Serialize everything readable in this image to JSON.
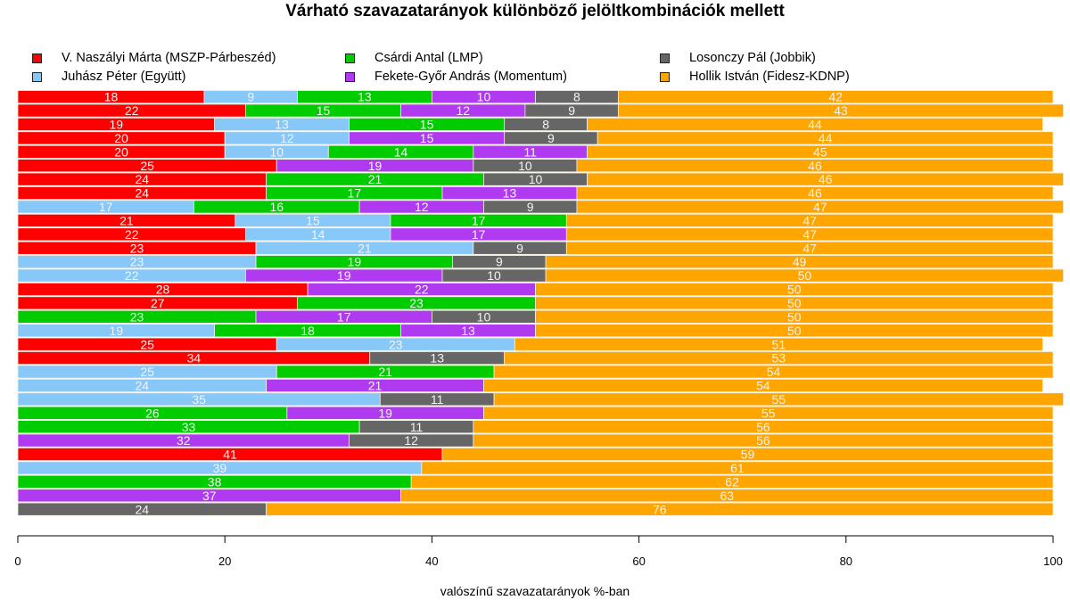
{
  "chart_data": {
    "type": "bar",
    "orientation": "horizontal-stacked",
    "title": "Várható szavazatarányok különböző jelöltkombinációk mellett",
    "xlabel": "valószínű szavazatarányok %-ban",
    "ylabel": "",
    "xlim": [
      0,
      100
    ],
    "x_ticks": [
      0,
      20,
      40,
      60,
      80,
      100
    ],
    "grid": false,
    "legend_position": "top",
    "series": [
      {
        "key": "naszalyi",
        "name": "V. Naszályi Márta (MSZP-Párbeszéd)",
        "color": "#ff0000"
      },
      {
        "key": "juhasz",
        "name": "Juhász Péter (Együtt)",
        "color": "#87c8f8"
      },
      {
        "key": "csardi",
        "name": "Csárdi Antal (LMP)",
        "color": "#00cc00"
      },
      {
        "key": "fekete",
        "name": "Fekete-Győr András (Momentum)",
        "color": "#b03af0"
      },
      {
        "key": "losonczy",
        "name": "Losonczy Pál (Jobbik)",
        "color": "#666666"
      },
      {
        "key": "hollik",
        "name": "Hollik István (Fidesz-KDNP)",
        "color": "#ffa500"
      }
    ],
    "legend_order": [
      "naszalyi",
      "csardi",
      "losonczy",
      "juhasz",
      "fekete",
      "hollik"
    ],
    "segment_order": [
      "naszalyi",
      "juhasz",
      "csardi",
      "fekete",
      "losonczy",
      "hollik"
    ],
    "rows": [
      {
        "naszalyi": 18,
        "juhasz": 9,
        "csardi": 13,
        "fekete": 10,
        "losonczy": 8,
        "hollik": 42
      },
      {
        "naszalyi": 22,
        "csardi": 15,
        "fekete": 12,
        "losonczy": 9,
        "hollik": 43
      },
      {
        "naszalyi": 19,
        "juhasz": 13,
        "csardi": 15,
        "losonczy": 8,
        "hollik": 44
      },
      {
        "naszalyi": 20,
        "juhasz": 12,
        "fekete": 15,
        "losonczy": 9,
        "hollik": 44
      },
      {
        "naszalyi": 20,
        "juhasz": 10,
        "csardi": 14,
        "fekete": 11,
        "hollik": 45
      },
      {
        "naszalyi": 25,
        "fekete": 19,
        "losonczy": 10,
        "hollik": 46
      },
      {
        "naszalyi": 24,
        "csardi": 21,
        "losonczy": 10,
        "hollik": 46
      },
      {
        "naszalyi": 24,
        "csardi": 17,
        "fekete": 13,
        "hollik": 46
      },
      {
        "juhasz": 17,
        "csardi": 16,
        "fekete": 12,
        "losonczy": 9,
        "hollik": 47
      },
      {
        "naszalyi": 21,
        "juhasz": 15,
        "csardi": 17,
        "hollik": 47
      },
      {
        "naszalyi": 22,
        "juhasz": 14,
        "fekete": 17,
        "hollik": 47
      },
      {
        "naszalyi": 23,
        "juhasz": 21,
        "losonczy": 9,
        "hollik": 47
      },
      {
        "juhasz": 23,
        "csardi": 19,
        "losonczy": 9,
        "hollik": 49
      },
      {
        "juhasz": 22,
        "fekete": 19,
        "losonczy": 10,
        "hollik": 50
      },
      {
        "naszalyi": 28,
        "fekete": 22,
        "hollik": 50
      },
      {
        "naszalyi": 27,
        "csardi": 23,
        "hollik": 50
      },
      {
        "csardi": 23,
        "fekete": 17,
        "losonczy": 10,
        "hollik": 50
      },
      {
        "juhasz": 19,
        "csardi": 18,
        "fekete": 13,
        "hollik": 50
      },
      {
        "naszalyi": 25,
        "juhasz": 23,
        "hollik": 51
      },
      {
        "naszalyi": 34,
        "losonczy": 13,
        "hollik": 53
      },
      {
        "juhasz": 25,
        "csardi": 21,
        "hollik": 54
      },
      {
        "juhasz": 24,
        "fekete": 21,
        "hollik": 54
      },
      {
        "juhasz": 35,
        "losonczy": 11,
        "hollik": 55
      },
      {
        "csardi": 26,
        "fekete": 19,
        "hollik": 55
      },
      {
        "csardi": 33,
        "losonczy": 11,
        "hollik": 56
      },
      {
        "fekete": 32,
        "losonczy": 12,
        "hollik": 56
      },
      {
        "naszalyi": 41,
        "hollik": 59
      },
      {
        "juhasz": 39,
        "hollik": 61
      },
      {
        "csardi": 38,
        "hollik": 62
      },
      {
        "fekete": 37,
        "hollik": 63
      },
      {
        "losonczy": 24,
        "hollik": 76
      }
    ]
  }
}
